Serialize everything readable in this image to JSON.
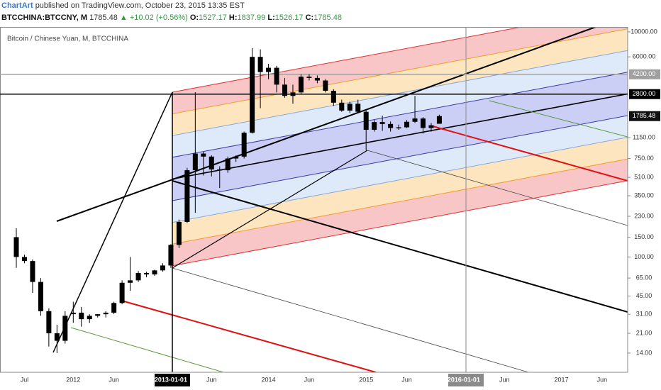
{
  "header": {
    "author": "ChartArt",
    "published": "published on TradingView.com, October 23, 2015 13:35 EST",
    "symbol": "BTCCHINA:BTCCNY, M",
    "price": 1785.48,
    "change": "+10.02 (+0.56%)",
    "ohlc": [
      {
        "label": "O:",
        "value": 1527.17
      },
      {
        "label": "H:",
        "value": 1837.99
      },
      {
        "label": "L:",
        "value": 1526.17
      },
      {
        "label": "C:",
        "value": 1785.48
      }
    ]
  },
  "chart_data": {
    "type": "candlestick",
    "title": "Bitcoin / Chinese Yuan, M, BTCCHINA",
    "color": "#000000",
    "log_scale": true,
    "categories": [
      null,
      "Jul",
      null,
      null,
      null,
      null,
      null,
      "2012",
      null,
      null,
      null,
      null,
      "Jun",
      null,
      null,
      null,
      null,
      null,
      null,
      "2013-01-01",
      null,
      null,
      null,
      null,
      "Jun",
      null,
      null,
      null,
      null,
      null,
      null,
      "2014",
      null,
      null,
      null,
      null,
      "Jun",
      null,
      null,
      null,
      null,
      null,
      null,
      "2015",
      null,
      null,
      null,
      null,
      "Jun",
      null,
      null,
      null,
      null,
      null,
      null,
      "2016-01-01",
      null,
      null,
      null,
      null,
      "Jun",
      null,
      null,
      null,
      null,
      null,
      null,
      "2017",
      null,
      null,
      null,
      null,
      "Jun",
      null,
      null,
      null
    ],
    "open": [
      150,
      100,
      92,
      60,
      33,
      21,
      18,
      31,
      32,
      28,
      30,
      31,
      32,
      39,
      59,
      62,
      72,
      70,
      76,
      84,
      128,
      205,
      590,
      830,
      780,
      600,
      590,
      750,
      780,
      1270,
      6000,
      4400,
      4800,
      3400,
      2700,
      2900,
      4000,
      3900,
      3700,
      3000,
      2350,
      2000,
      2300,
      1950,
      1350,
      1580,
      1520,
      1400,
      1420,
      1590,
      1700,
      1400,
      1527.17,
      null,
      null,
      null,
      null,
      null,
      null,
      null,
      null,
      null,
      null,
      null,
      null,
      null,
      null,
      null,
      null,
      null,
      null,
      null,
      null,
      null,
      null,
      null
    ],
    "high": [
      180,
      105,
      95,
      65,
      35,
      25,
      33,
      40,
      36,
      31,
      31,
      33,
      40,
      62,
      100,
      75,
      74,
      77,
      88,
      130,
      215,
      620,
      2910,
      860,
      800,
      640,
      780,
      800,
      1300,
      7170,
      7000,
      5200,
      5000,
      3900,
      3400,
      4200,
      4200,
      4100,
      3800,
      3100,
      2500,
      2400,
      2500,
      2000,
      1650,
      1800,
      1600,
      1500,
      1650,
      2700,
      1750,
      1550,
      1837.99,
      null,
      null,
      null,
      null,
      null,
      null,
      null,
      null,
      null,
      null,
      null,
      null,
      null,
      null,
      null,
      null,
      null,
      null,
      null,
      null,
      null,
      null,
      null
    ],
    "low": [
      80,
      88,
      48,
      30,
      16,
      14,
      17,
      26,
      24,
      26,
      29,
      29,
      31,
      38,
      50,
      60,
      66,
      68,
      74,
      80,
      120,
      200,
      247,
      530,
      520,
      410,
      560,
      700,
      750,
      1250,
      2100,
      3800,
      2900,
      2600,
      2300,
      2800,
      3700,
      3500,
      2900,
      2200,
      1950,
      1900,
      1900,
      885,
      1300,
      1320,
      1300,
      1350,
      1400,
      1550,
      1250,
      1300,
      1526.17,
      null,
      null,
      null,
      null,
      null,
      null,
      null,
      null,
      null,
      null,
      null,
      null,
      null,
      null,
      null,
      null,
      null,
      null,
      null,
      null,
      null,
      null,
      null
    ],
    "close": [
      100,
      92,
      60,
      33,
      21,
      18,
      30,
      32,
      28,
      30,
      31,
      32,
      39,
      59,
      62,
      72,
      70,
      76,
      84,
      128,
      205,
      590,
      830,
      780,
      600,
      590,
      750,
      780,
      1270,
      6000,
      4400,
      4800,
      3400,
      2700,
      2900,
      4000,
      3900,
      3700,
      3000,
      2350,
      2000,
      2300,
      1950,
      1350,
      1580,
      1520,
      1400,
      1420,
      1590,
      1700,
      1400,
      1480,
      1785.48,
      null,
      null,
      null,
      null,
      null,
      null,
      null,
      null,
      null,
      null,
      null,
      null,
      null,
      null,
      null,
      null,
      null,
      null,
      null,
      null,
      null,
      null,
      null
    ],
    "ylim": [
      9.45,
      11070
    ],
    "yticks": [
      {
        "value": 10000,
        "label": "10000.00"
      },
      {
        "value": 6000,
        "label": "6000.00"
      },
      {
        "value": 1150,
        "label": "1150.00"
      },
      {
        "value": 750,
        "label": "750.00"
      },
      {
        "value": 510,
        "label": "510.00"
      },
      {
        "value": 350,
        "label": "350.00"
      },
      {
        "value": 230,
        "label": "230.00"
      },
      {
        "value": 150,
        "label": "150.00"
      },
      {
        "value": 100,
        "label": "100.00"
      },
      {
        "value": 65,
        "label": "65.00"
      },
      {
        "value": 45,
        "label": "45.00"
      },
      {
        "value": 31,
        "label": "31.00"
      },
      {
        "value": 21,
        "label": "21.00"
      },
      {
        "value": 14,
        "label": "14.00"
      }
    ],
    "price_lines": [
      {
        "value": 4200,
        "label": "4200.00",
        "color": "#a0a0a0"
      },
      {
        "value": 2800,
        "label": "2800.00",
        "color": "#000000"
      }
    ],
    "last_price": {
      "value": 1785.48,
      "label": "1785.48"
    }
  }
}
